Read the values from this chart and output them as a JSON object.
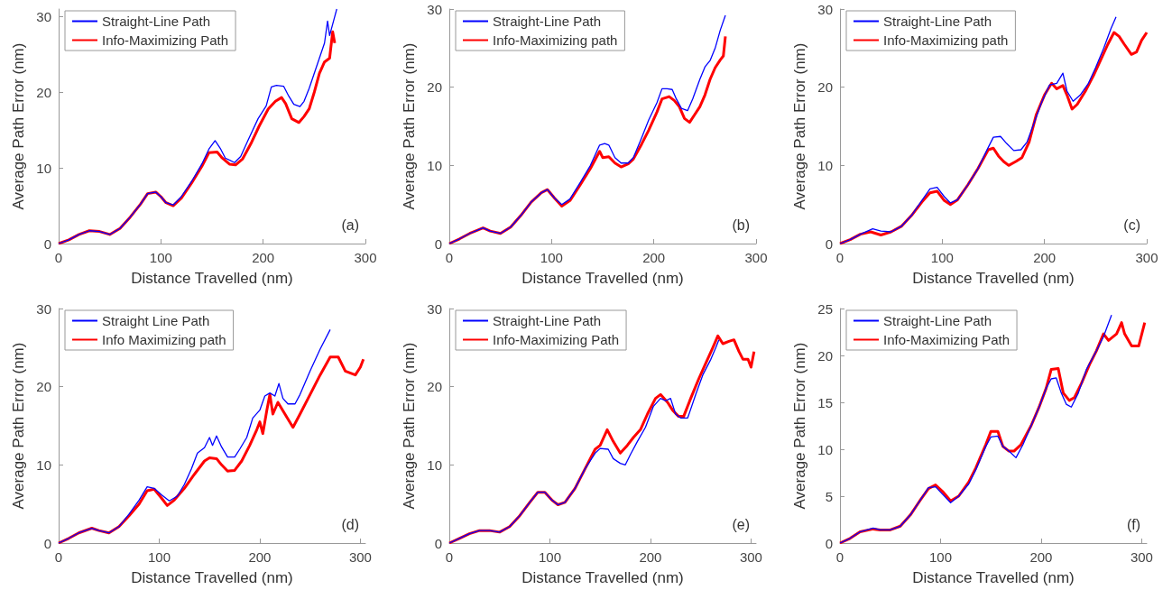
{
  "chart_data": [
    {
      "type": "line",
      "xlabel": "Distance Travelled (nm)",
      "ylabel": "Average Path Error (nm)",
      "annotations": [
        "(a)"
      ],
      "xlim": [
        0,
        300
      ],
      "xticks": [
        0,
        100,
        200,
        300
      ],
      "ylim": [
        0,
        31
      ],
      "yticks": [
        0,
        10,
        20,
        30
      ],
      "grid": false,
      "legend": "top left",
      "series": [
        {
          "name": "Straight-Line Path",
          "color": "#0000ff",
          "x": [
            0,
            10,
            20,
            30,
            40,
            50,
            60,
            70,
            80,
            87,
            95,
            100,
            105,
            112,
            120,
            130,
            140,
            147,
            153,
            158,
            163,
            172,
            178,
            185,
            195,
            203,
            208,
            213,
            220,
            225,
            230,
            236,
            240,
            245,
            250,
            255,
            260,
            263,
            265,
            270,
            272
          ],
          "values": [
            0,
            0.5,
            1.2,
            1.7,
            1.6,
            1.2,
            2,
            3.5,
            5.2,
            6.6,
            6.8,
            6.2,
            5.4,
            5.1,
            6.2,
            8.2,
            10.5,
            12.5,
            13.6,
            12.6,
            11.3,
            10.7,
            11.5,
            13.6,
            16.5,
            18.2,
            20.7,
            20.9,
            20.8,
            19.5,
            18.4,
            18.1,
            18.8,
            20.5,
            22.5,
            24.5,
            26.5,
            29.4,
            27.5,
            30,
            31
          ]
        },
        {
          "name": "Info-Maximizing Path",
          "color": "#ff0000",
          "x": [
            0,
            10,
            20,
            30,
            40,
            50,
            60,
            70,
            80,
            87,
            95,
            100,
            105,
            112,
            120,
            130,
            140,
            147,
            155,
            160,
            167,
            173,
            180,
            188,
            196,
            205,
            212,
            218,
            222,
            228,
            235,
            240,
            245,
            250,
            255,
            260,
            265,
            268,
            270
          ],
          "values": [
            0,
            0.5,
            1.2,
            1.7,
            1.6,
            1.2,
            2,
            3.5,
            5.2,
            6.6,
            6.8,
            6.2,
            5.4,
            5,
            6,
            8,
            10.2,
            12,
            12.1,
            11.3,
            10.5,
            10.4,
            11.2,
            13.2,
            15.5,
            17.8,
            18.8,
            19.3,
            18.5,
            16.5,
            16,
            16.8,
            17.8,
            20,
            22.5,
            24,
            24.5,
            28,
            26.5
          ]
        }
      ]
    },
    {
      "type": "line",
      "xlabel": "Distance Travelled (nm)",
      "ylabel": "Average Path Error (nm)",
      "annotations": [
        "(b)"
      ],
      "xlim": [
        0,
        300
      ],
      "xticks": [
        0,
        100,
        200,
        300
      ],
      "ylim": [
        0,
        30
      ],
      "yticks": [
        0,
        10,
        20,
        30
      ],
      "grid": false,
      "legend": "top left",
      "series": [
        {
          "name": "Straight-Line Path",
          "color": "#0000ff",
          "x": [
            0,
            10,
            20,
            33,
            40,
            50,
            60,
            70,
            80,
            90,
            96,
            103,
            110,
            118,
            128,
            138,
            147,
            152,
            156,
            162,
            168,
            175,
            180,
            188,
            195,
            203,
            208,
            213,
            218,
            222,
            227,
            233,
            238,
            245,
            250,
            255,
            260,
            265,
            270
          ],
          "values": [
            0,
            0.6,
            1.3,
            2,
            1.6,
            1.3,
            2.1,
            3.6,
            5.3,
            6.5,
            6.9,
            5.8,
            5,
            5.7,
            7.8,
            10,
            12.6,
            12.8,
            12.6,
            11,
            10.3,
            10.3,
            11,
            13.5,
            15.8,
            18,
            19.8,
            19.8,
            19.7,
            18.5,
            17.3,
            17,
            18.5,
            21,
            22.6,
            23.4,
            25,
            27.3,
            29.2
          ]
        },
        {
          "name": "Info-Maximizing path",
          "color": "#ff0000",
          "x": [
            0,
            10,
            20,
            33,
            40,
            50,
            60,
            70,
            80,
            90,
            96,
            103,
            110,
            118,
            128,
            138,
            147,
            150,
            156,
            162,
            168,
            175,
            180,
            188,
            195,
            203,
            208,
            215,
            220,
            225,
            230,
            235,
            240,
            245,
            250,
            255,
            260,
            265,
            268,
            270
          ],
          "values": [
            0,
            0.6,
            1.3,
            2,
            1.6,
            1.3,
            2.1,
            3.6,
            5.3,
            6.5,
            6.9,
            5.8,
            4.8,
            5.5,
            7.5,
            9.6,
            11.8,
            11,
            11.1,
            10.3,
            9.8,
            10.2,
            10.8,
            12.7,
            14.5,
            16.8,
            18.5,
            18.8,
            18.3,
            17.5,
            16,
            15.5,
            16.5,
            17.5,
            19,
            21,
            22.5,
            23.5,
            24,
            26.5
          ]
        }
      ]
    },
    {
      "type": "line",
      "xlabel": "Distance Travelled (nm)",
      "ylabel": "Average Path Error (nm)",
      "annotations": [
        "(c)"
      ],
      "xlim": [
        0,
        300
      ],
      "xticks": [
        0,
        100,
        200,
        300
      ],
      "ylim": [
        0,
        30
      ],
      "yticks": [
        0,
        10,
        20,
        30
      ],
      "grid": false,
      "legend": "top left",
      "series": [
        {
          "name": "Straight-Line Path",
          "color": "#0000ff",
          "x": [
            0,
            10,
            20,
            32,
            40,
            50,
            60,
            70,
            80,
            88,
            95,
            102,
            108,
            115,
            125,
            135,
            145,
            150,
            157,
            163,
            170,
            177,
            183,
            190,
            197,
            205,
            212,
            218,
            222,
            228,
            235,
            243,
            250,
            258,
            265,
            270
          ],
          "values": [
            0,
            0.5,
            1.2,
            1.9,
            1.6,
            1.5,
            2.2,
            3.6,
            5.5,
            7,
            7.2,
            6,
            5.2,
            5.6,
            7.5,
            9.6,
            12.3,
            13.6,
            13.7,
            12.8,
            11.9,
            12,
            13,
            15.5,
            18,
            20.3,
            20.5,
            21.8,
            19.5,
            18.2,
            19,
            20.5,
            22.5,
            25,
            27.5,
            29
          ]
        },
        {
          "name": "Info-Maximizing path",
          "color": "#ff0000",
          "x": [
            0,
            10,
            20,
            30,
            40,
            50,
            60,
            70,
            80,
            88,
            95,
            102,
            108,
            115,
            125,
            135,
            145,
            150,
            155,
            160,
            165,
            172,
            178,
            185,
            192,
            200,
            207,
            212,
            218,
            222,
            227,
            232,
            240,
            248,
            255,
            262,
            268,
            273,
            278,
            285,
            290,
            295,
            300
          ],
          "values": [
            0,
            0.5,
            1.2,
            1.5,
            1.1,
            1.5,
            2.2,
            3.6,
            5.3,
            6.5,
            6.7,
            5.5,
            5,
            5.6,
            7.5,
            9.6,
            12,
            12.2,
            11.2,
            10.5,
            10,
            10.5,
            11,
            13,
            16.5,
            19,
            20.5,
            19.8,
            20.2,
            19,
            17.2,
            17.8,
            19.5,
            21.5,
            23.5,
            25.5,
            27,
            26.5,
            25.5,
            24.2,
            24.5,
            26,
            27
          ]
        }
      ]
    },
    {
      "type": "line",
      "xlabel": "Distance Travelled (nm)",
      "ylabel": "Average Path Error (nm)",
      "annotations": [
        "(d)"
      ],
      "xlim": [
        0,
        305
      ],
      "xticks": [
        0,
        100,
        200,
        300
      ],
      "ylim": [
        0,
        30
      ],
      "yticks": [
        0,
        10,
        20,
        30
      ],
      "grid": false,
      "legend": "top left",
      "series": [
        {
          "name": "Straight Line Path",
          "color": "#0000ff",
          "x": [
            0,
            10,
            20,
            33,
            40,
            50,
            60,
            70,
            80,
            88,
            95,
            102,
            110,
            118,
            125,
            132,
            138,
            145,
            150,
            153,
            157,
            162,
            168,
            175,
            180,
            187,
            193,
            200,
            205,
            210,
            215,
            219,
            223,
            228,
            235,
            240,
            250,
            260,
            270
          ],
          "values": [
            0,
            0.6,
            1.3,
            1.9,
            1.6,
            1.3,
            2.1,
            3.7,
            5.5,
            7.2,
            7,
            6.2,
            5.4,
            6,
            7.5,
            9.5,
            11.5,
            12.2,
            13.5,
            12.5,
            13.7,
            12.3,
            11,
            11,
            12,
            13.5,
            16,
            17,
            18.8,
            19.2,
            18.8,
            20.4,
            18.5,
            17.8,
            17.8,
            19,
            22,
            24.8,
            27.3
          ]
        },
        {
          "name": "Info Maximizing path",
          "color": "#ff0000",
          "x": [
            0,
            10,
            20,
            33,
            40,
            50,
            60,
            70,
            80,
            88,
            95,
            102,
            108,
            115,
            125,
            135,
            145,
            150,
            157,
            162,
            168,
            175,
            182,
            190,
            197,
            200,
            203,
            207,
            210,
            213,
            218,
            225,
            233,
            240,
            250,
            260,
            270,
            278,
            285,
            295,
            300,
            303
          ],
          "values": [
            0,
            0.6,
            1.3,
            1.9,
            1.6,
            1.3,
            2.1,
            3.5,
            5,
            6.7,
            6.9,
            5.8,
            4.8,
            5.5,
            7,
            8.8,
            10.5,
            10.9,
            10.8,
            10,
            9.2,
            9.3,
            10.5,
            12.5,
            14.5,
            15.5,
            14,
            17,
            19,
            16.5,
            18,
            16.5,
            14.8,
            16.5,
            19,
            21.5,
            23.8,
            23.8,
            22,
            21.5,
            22.5,
            23.5
          ]
        }
      ]
    },
    {
      "type": "line",
      "xlabel": "Distance Travelled (nm)",
      "ylabel": "Average Path Error (nm)",
      "annotations": [
        "(e)"
      ],
      "xlim": [
        0,
        305
      ],
      "xticks": [
        0,
        100,
        200,
        300
      ],
      "ylim": [
        0,
        30
      ],
      "yticks": [
        0,
        10,
        20,
        30
      ],
      "grid": false,
      "legend": "top left",
      "series": [
        {
          "name": "Straight-Line Path",
          "color": "#0000ff",
          "x": [
            0,
            10,
            20,
            30,
            40,
            50,
            60,
            70,
            80,
            88,
            95,
            102,
            108,
            115,
            125,
            135,
            145,
            150,
            158,
            163,
            170,
            175,
            180,
            187,
            195,
            203,
            210,
            215,
            220,
            225,
            230,
            237,
            245,
            252,
            260,
            265,
            268
          ],
          "values": [
            0,
            0.6,
            1.2,
            1.6,
            1.6,
            1.4,
            2.1,
            3.5,
            5.2,
            6.5,
            6.5,
            5.5,
            4.9,
            5.2,
            7,
            9.5,
            11.5,
            12.1,
            12,
            10.8,
            10.2,
            10,
            11.3,
            13,
            14.8,
            17.5,
            18.5,
            18.2,
            18.5,
            16.5,
            16,
            16,
            19,
            21.5,
            23.5,
            25,
            26
          ]
        },
        {
          "name": "Info-Maximizing Path",
          "color": "#ff0000",
          "x": [
            0,
            10,
            20,
            30,
            40,
            50,
            60,
            70,
            80,
            88,
            95,
            102,
            108,
            115,
            125,
            135,
            145,
            150,
            157,
            163,
            170,
            177,
            183,
            190,
            197,
            205,
            210,
            217,
            222,
            228,
            233,
            240,
            248,
            255,
            262,
            267,
            272,
            278,
            283,
            288,
            292,
            297,
            300,
            303
          ],
          "values": [
            0,
            0.6,
            1.2,
            1.6,
            1.6,
            1.4,
            2.1,
            3.5,
            5.2,
            6.5,
            6.5,
            5.5,
            4.9,
            5.2,
            7,
            9.5,
            12,
            12.5,
            14.5,
            13,
            11.5,
            12.5,
            13.5,
            14.5,
            16.5,
            18.5,
            19,
            18,
            17,
            16.2,
            16.2,
            18.5,
            21,
            23,
            25,
            26.5,
            25.5,
            25.8,
            26,
            24.5,
            23.5,
            23.5,
            22.5,
            24.5
          ]
        }
      ]
    },
    {
      "type": "line",
      "xlabel": "Distance Travelled (nm)",
      "ylabel": "Average Path Error (nm)",
      "annotations": [
        "(f)"
      ],
      "xlim": [
        0,
        305
      ],
      "xticks": [
        0,
        100,
        200,
        300
      ],
      "ylim": [
        0,
        25
      ],
      "yticks": [
        0,
        5,
        10,
        15,
        20,
        25
      ],
      "grid": false,
      "legend": "top left",
      "series": [
        {
          "name": "Straight-Line Path",
          "color": "#0000ff",
          "x": [
            0,
            10,
            20,
            33,
            40,
            50,
            60,
            70,
            80,
            88,
            95,
            102,
            110,
            118,
            128,
            135,
            145,
            150,
            157,
            162,
            168,
            175,
            182,
            190,
            198,
            205,
            210,
            215,
            220,
            225,
            230,
            237,
            245,
            255,
            262,
            270
          ],
          "values": [
            0,
            0.5,
            1.2,
            1.6,
            1.4,
            1.4,
            1.8,
            3,
            4.6,
            5.9,
            6,
            5.2,
            4.3,
            5,
            6.3,
            7.8,
            10.3,
            11.3,
            11.4,
            10.3,
            9.8,
            9.1,
            10.5,
            12.5,
            14.5,
            16.5,
            17.5,
            17.6,
            16,
            14.8,
            14.5,
            16,
            18.5,
            20.5,
            22,
            24.3
          ]
        },
        {
          "name": "Info-Maximizing Path",
          "color": "#ff0000",
          "x": [
            0,
            10,
            20,
            33,
            40,
            50,
            60,
            70,
            80,
            88,
            95,
            102,
            110,
            118,
            128,
            135,
            145,
            150,
            157,
            162,
            168,
            173,
            180,
            190,
            198,
            205,
            210,
            217,
            222,
            228,
            233,
            240,
            248,
            255,
            262,
            267,
            275,
            280,
            283,
            290,
            297,
            303
          ],
          "values": [
            0,
            0.5,
            1.2,
            1.5,
            1.4,
            1.4,
            1.8,
            3,
            4.6,
            5.8,
            6.2,
            5.5,
            4.5,
            5,
            6.5,
            8,
            10.5,
            11.9,
            11.9,
            10.3,
            9.8,
            9.8,
            10.5,
            12.5,
            14.5,
            16.5,
            18.5,
            18.6,
            16,
            15.2,
            15.5,
            17,
            19,
            20.5,
            22.3,
            21.6,
            22.3,
            23.5,
            22.3,
            21,
            21,
            23.5
          ]
        }
      ]
    }
  ]
}
